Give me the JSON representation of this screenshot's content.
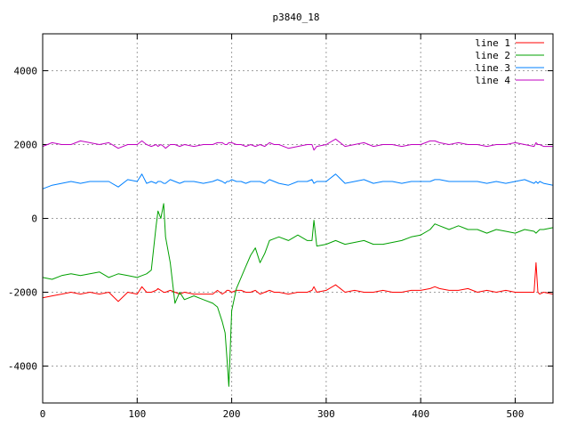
{
  "chart_data": {
    "type": "line",
    "title": "p3840_18",
    "xlabel": "",
    "ylabel": "",
    "xlim": [
      0,
      540
    ],
    "ylim": [
      -5000,
      5000
    ],
    "x_ticks": [
      0,
      100,
      200,
      300,
      400,
      500
    ],
    "y_ticks": [
      -4000,
      -2000,
      0,
      2000,
      4000
    ],
    "grid": true,
    "legend_position": "top-right",
    "x": [
      0,
      10,
      20,
      30,
      40,
      50,
      60,
      70,
      80,
      90,
      100,
      105,
      110,
      115,
      120,
      122,
      125,
      128,
      130,
      135,
      140,
      145,
      150,
      160,
      170,
      180,
      185,
      190,
      193,
      195,
      197,
      200,
      205,
      210,
      215,
      220,
      225,
      230,
      235,
      240,
      245,
      250,
      260,
      270,
      280,
      285,
      287,
      290,
      300,
      310,
      320,
      330,
      340,
      350,
      360,
      370,
      380,
      390,
      400,
      410,
      415,
      420,
      430,
      440,
      450,
      460,
      470,
      480,
      490,
      500,
      510,
      520,
      522,
      524,
      526,
      530,
      540
    ],
    "series": [
      {
        "name": "line 1",
        "color": "#ff0000",
        "values": [
          -2150,
          -2100,
          -2050,
          -2000,
          -2050,
          -2000,
          -2050,
          -2000,
          -2250,
          -2000,
          -2050,
          -1850,
          -2000,
          -2000,
          -1950,
          -1900,
          -1950,
          -2000,
          -2000,
          -1950,
          -2000,
          -2050,
          -2000,
          -2050,
          -2050,
          -2050,
          -1950,
          -2050,
          -2000,
          -1950,
          -1950,
          -2000,
          -1950,
          -1950,
          -2000,
          -2000,
          -1950,
          -2050,
          -2000,
          -1950,
          -2000,
          -2000,
          -2050,
          -2000,
          -2000,
          -1950,
          -1850,
          -2000,
          -1950,
          -1800,
          -2000,
          -1950,
          -2000,
          -2000,
          -1950,
          -2000,
          -2000,
          -1950,
          -1950,
          -1900,
          -1850,
          -1900,
          -1950,
          -1950,
          -1900,
          -2000,
          -1950,
          -2000,
          -1950,
          -2000,
          -2000,
          -2000,
          -1200,
          -2000,
          -2050,
          -2000,
          -2050
        ]
      },
      {
        "name": "line 2",
        "color": "#00a000",
        "values": [
          -1600,
          -1650,
          -1550,
          -1500,
          -1550,
          -1500,
          -1450,
          -1600,
          -1500,
          -1550,
          -1600,
          -1550,
          -1500,
          -1400,
          -200,
          200,
          0,
          400,
          -500,
          -1200,
          -2300,
          -2000,
          -2200,
          -2100,
          -2200,
          -2300,
          -2400,
          -2800,
          -3100,
          -3800,
          -4550,
          -2500,
          -1900,
          -1600,
          -1300,
          -1000,
          -800,
          -1200,
          -950,
          -600,
          -550,
          -500,
          -600,
          -450,
          -600,
          -600,
          -50,
          -750,
          -700,
          -600,
          -700,
          -650,
          -600,
          -700,
          -700,
          -650,
          -600,
          -500,
          -450,
          -300,
          -150,
          -200,
          -300,
          -200,
          -300,
          -300,
          -400,
          -300,
          -350,
          -400,
          -300,
          -350,
          -400,
          -350,
          -300,
          -300,
          -250
        ]
      },
      {
        "name": "line 3",
        "color": "#0080ff",
        "values": [
          800,
          900,
          950,
          1000,
          950,
          1000,
          1000,
          1000,
          850,
          1050,
          1000,
          1200,
          950,
          1000,
          950,
          1000,
          1000,
          950,
          950,
          1050,
          1000,
          950,
          1000,
          1000,
          950,
          1000,
          1050,
          1000,
          950,
          1000,
          1000,
          1050,
          1000,
          1000,
          950,
          1000,
          1000,
          1000,
          950,
          1050,
          1000,
          950,
          900,
          1000,
          1000,
          1050,
          950,
          1000,
          1000,
          1200,
          950,
          1000,
          1050,
          950,
          1000,
          1000,
          950,
          1000,
          1000,
          1000,
          1050,
          1050,
          1000,
          1000,
          1000,
          1000,
          950,
          1000,
          950,
          1000,
          1050,
          950,
          1000,
          950,
          1000,
          950,
          900
        ]
      },
      {
        "name": "line 4",
        "color": "#c000c0",
        "values": [
          1950,
          2050,
          2000,
          2000,
          2100,
          2050,
          2000,
          2050,
          1900,
          2000,
          2000,
          2100,
          2000,
          1950,
          2000,
          1950,
          2000,
          1950,
          1900,
          2000,
          2000,
          1950,
          2000,
          1950,
          2000,
          2000,
          2050,
          2050,
          2000,
          2000,
          2050,
          2050,
          2000,
          2000,
          1950,
          2000,
          1950,
          2000,
          1950,
          2050,
          2000,
          2000,
          1900,
          1950,
          2000,
          2000,
          1850,
          1950,
          2000,
          2150,
          1950,
          2000,
          2050,
          1950,
          2000,
          2000,
          1950,
          2000,
          2000,
          2100,
          2100,
          2050,
          2000,
          2050,
          2000,
          2000,
          1950,
          2000,
          2000,
          2050,
          2000,
          1950,
          2050,
          2000,
          2000,
          1950,
          1950
        ]
      }
    ]
  }
}
